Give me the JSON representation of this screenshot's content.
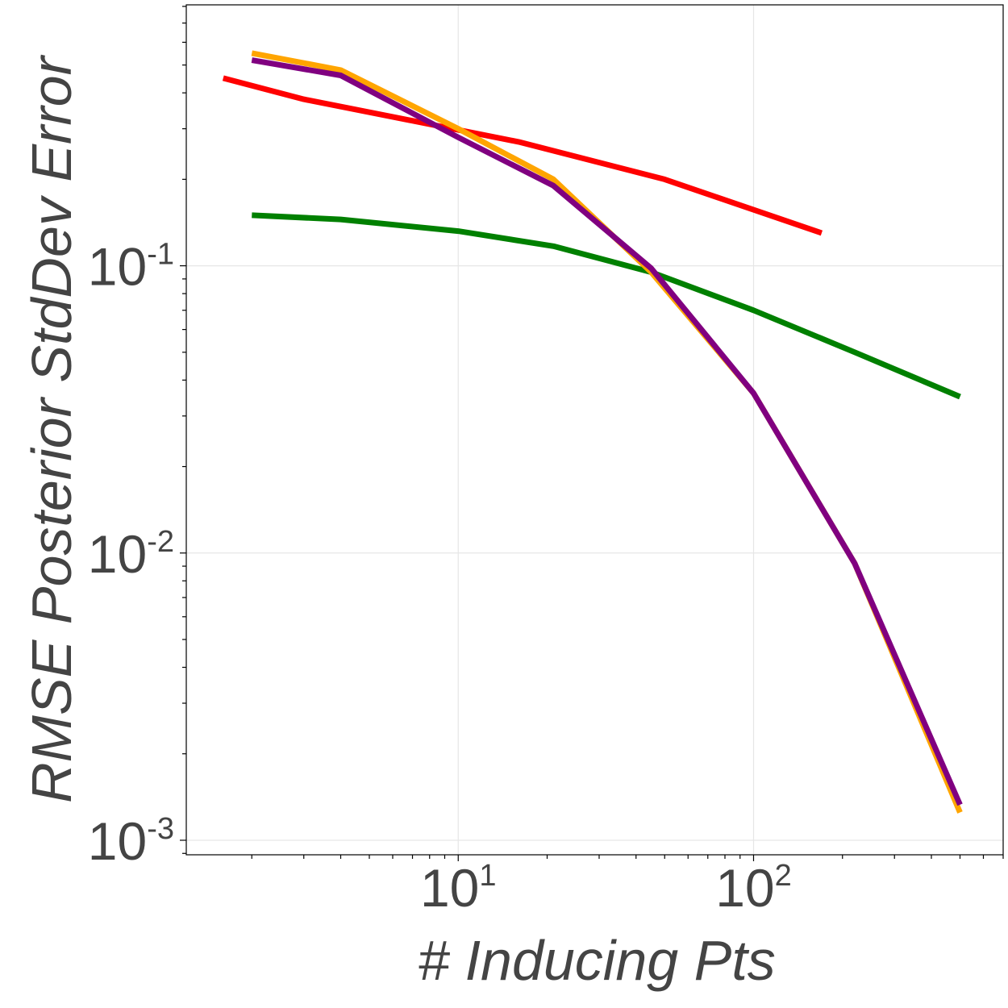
{
  "chart_data": {
    "type": "line",
    "title": "",
    "xlabel": "# Inducing Pts",
    "ylabel": "RMSE Posterior StdDev Error",
    "xscale": "log",
    "yscale": "log",
    "xlim": [
      1.2,
      700
    ],
    "ylim": [
      0.00089,
      0.81
    ],
    "xticks": [
      {
        "base": "10",
        "exp": "1",
        "value": 10
      },
      {
        "base": "10",
        "exp": "2",
        "value": 100
      }
    ],
    "yticks": [
      {
        "base": "10",
        "exp": "-1",
        "value": 0.1
      },
      {
        "base": "10",
        "exp": "-2",
        "value": 0.01
      },
      {
        "base": "10",
        "exp": "-3",
        "value": 0.001
      }
    ],
    "grid": true,
    "legend": "none",
    "series": [
      {
        "name": "red",
        "color": "#ff0000",
        "x": [
          1.6,
          3,
          6,
          16,
          50,
          170
        ],
        "y": [
          0.45,
          0.38,
          0.33,
          0.27,
          0.2,
          0.13
        ]
      },
      {
        "name": "green",
        "color": "#008000",
        "x": [
          2,
          4,
          10,
          21,
          45,
          100,
          220,
          500
        ],
        "y": [
          0.15,
          0.145,
          0.132,
          0.117,
          0.095,
          0.07,
          0.05,
          0.035
        ]
      },
      {
        "name": "orange",
        "color": "#ffa500",
        "x": [
          2,
          4,
          10,
          21,
          45,
          100,
          220,
          500
        ],
        "y": [
          0.55,
          0.48,
          0.3,
          0.2,
          0.095,
          0.036,
          0.0092,
          0.00125
        ]
      },
      {
        "name": "purple",
        "color": "#800080",
        "x": [
          2,
          4,
          10,
          21,
          45,
          100,
          220,
          500
        ],
        "y": [
          0.52,
          0.46,
          0.28,
          0.19,
          0.098,
          0.036,
          0.0092,
          0.00133
        ]
      }
    ]
  }
}
